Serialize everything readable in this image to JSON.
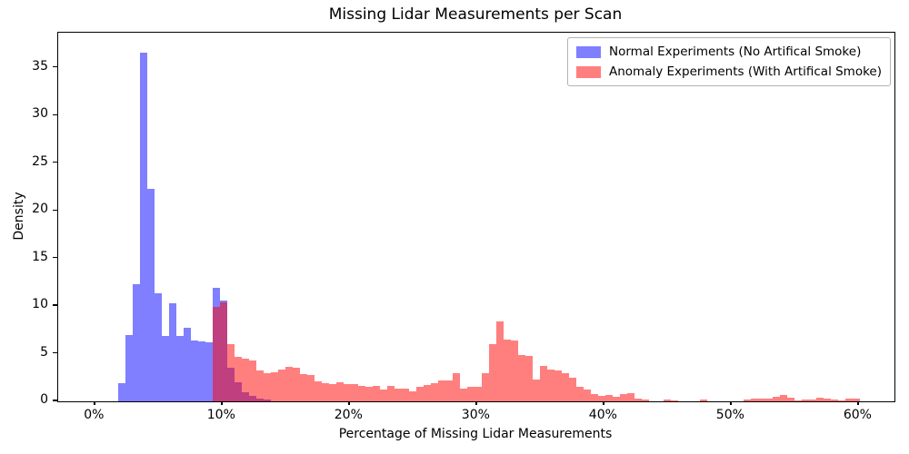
{
  "chart_data": {
    "type": "histogram",
    "title": "Missing Lidar Measurements per Scan",
    "xlabel": "Percentage of Missing Lidar Measurements",
    "ylabel": "Density",
    "x_tick_labels": [
      "0%",
      "10%",
      "20%",
      "30%",
      "40%",
      "50%",
      "60%"
    ],
    "x_tick_values": [
      0,
      10,
      20,
      30,
      40,
      50,
      60
    ],
    "y_tick_values": [
      0,
      5,
      10,
      15,
      20,
      25,
      30,
      35
    ],
    "xlim": [
      -2.88,
      62.83
    ],
    "ylim": [
      0,
      38.7
    ],
    "bin_width": 0.57143,
    "grid": false,
    "legend_position": "upper right",
    "colors": {
      "normal": "rgba(0,0,255,0.5)",
      "anomaly": "rgba(255,0,0,0.5)",
      "overlap_seen": "#bf4080",
      "axis": "#000000",
      "legend_border": "#b3b3b3"
    },
    "series": [
      {
        "name": "Normal Experiments (No Artifical Smoke)",
        "color": "rgba(0,0,255,0.5)",
        "bin_start": 1.857,
        "heights": [
          1.9,
          7.0,
          12.3,
          36.6,
          22.3,
          11.3,
          6.9,
          10.3,
          6.9,
          7.7,
          6.4,
          6.3,
          6.2,
          11.9,
          10.6,
          3.5,
          2.0,
          1.0,
          0.6,
          0.3,
          0.15
        ]
      },
      {
        "name": "Anomaly Experiments (With Artifical Smoke)",
        "color": "rgba(255,0,0,0.5)",
        "bin_start": 9.286,
        "heights": [
          9.9,
          10.35,
          6.0,
          4.7,
          4.45,
          4.25,
          3.2,
          2.95,
          3.05,
          3.35,
          3.65,
          3.5,
          2.9,
          2.75,
          2.1,
          1.95,
          1.85,
          2.0,
          1.85,
          1.8,
          1.6,
          1.55,
          1.6,
          1.25,
          1.6,
          1.35,
          1.3,
          1.05,
          1.5,
          1.7,
          1.9,
          2.15,
          2.15,
          2.95,
          1.35,
          1.55,
          1.5,
          2.95,
          6.0,
          8.35,
          6.45,
          6.35,
          4.9,
          4.75,
          2.25,
          3.75,
          3.35,
          3.25,
          3.0,
          2.5,
          1.5,
          1.2,
          0.75,
          0.6,
          0.7,
          0.5,
          0.75,
          0.85,
          0.3,
          0.15,
          0,
          0,
          0.2,
          0.05,
          0,
          0,
          0,
          0.15,
          0,
          0,
          0,
          0,
          0,
          0.2,
          0.3,
          0.3,
          0.3,
          0.5,
          0.7,
          0.4,
          0.1,
          0.2,
          0.2,
          0.35,
          0.3,
          0.15,
          0.1,
          0.3,
          0.3,
          0
        ]
      }
    ]
  }
}
